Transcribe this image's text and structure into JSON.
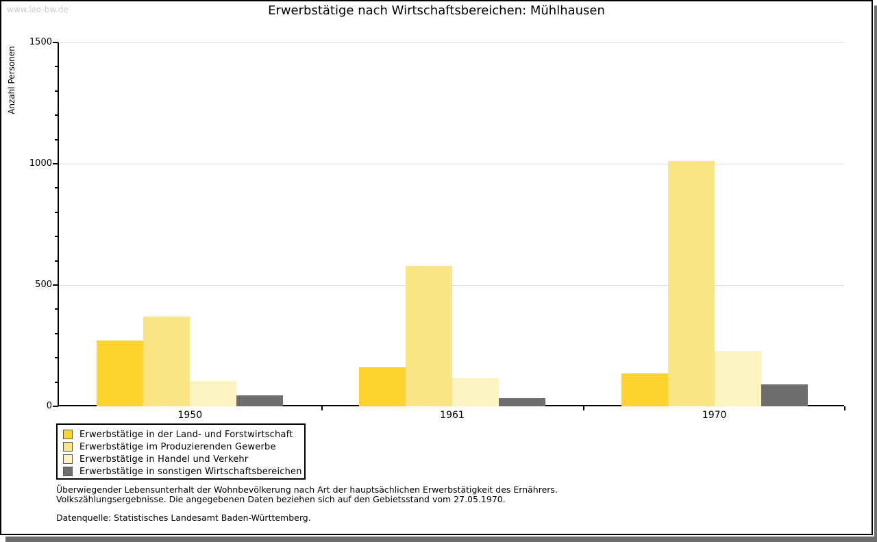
{
  "watermark": "www.leo-bw.de",
  "chart_data": {
    "type": "bar",
    "title": "Erwerbstätige nach Wirtschaftsbereichen: Mühlhausen",
    "ylabel": "Anzahl Personen",
    "xlabel": "",
    "categories": [
      "1950",
      "1961",
      "1970"
    ],
    "series": [
      {
        "name": "Erwerbstätige in der Land- und Forstwirtschaft",
        "color": "#FCD32F",
        "values": [
          270,
          160,
          135
        ]
      },
      {
        "name": "Erwerbstätige im Produzierenden Gewerbe",
        "color": "#FAE586",
        "values": [
          370,
          580,
          1010
        ]
      },
      {
        "name": "Erwerbstätige in Handel und Verkehr",
        "color": "#FBF3C1",
        "values": [
          105,
          115,
          230
        ]
      },
      {
        "name": "Erwerbstätige in sonstigen Wirtschaftsbereichen",
        "color": "#6E6E6E",
        "values": [
          45,
          35,
          90
        ]
      }
    ],
    "ylim": [
      0,
      1500
    ],
    "ytick_major": 500,
    "ytick_minor": 100,
    "grid": true,
    "legend_position": "bottom-left"
  },
  "footnotes": {
    "line1": "Überwiegender Lebensunterhalt der Wohnbevölkerung nach Art der hauptsächlichen Erwerbstätigkeit des Ernährers.",
    "line2": "Volkszählungsergebnisse. Die angegebenen Daten beziehen sich auf den Gebietsstand vom 27.05.1970.",
    "source": "Datenquelle: Statistisches Landesamt Baden-Württemberg."
  },
  "colors": {
    "gridline": "#DDDDDD",
    "axis": "#000000",
    "watermark": "#CCCCCC",
    "frame_shadow": "#6E6E6E",
    "background": "#FFFFFF"
  }
}
